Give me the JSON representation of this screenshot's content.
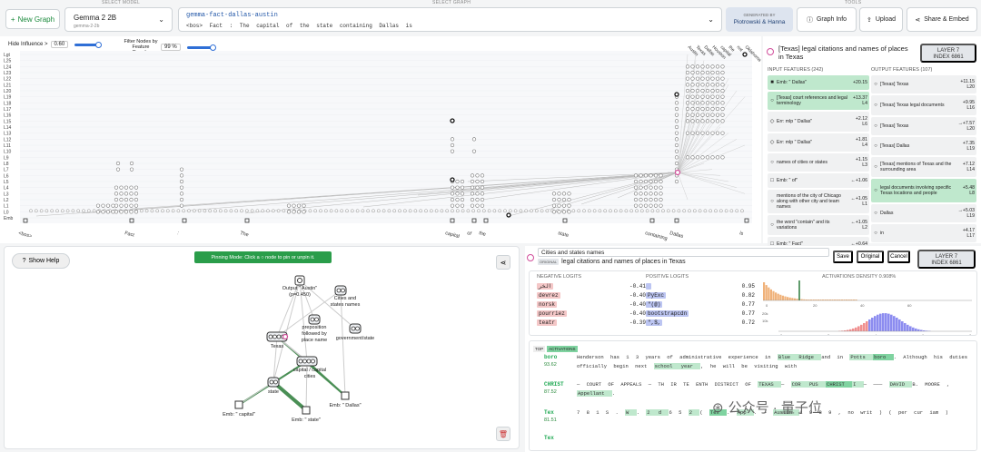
{
  "header": {
    "select_model_label": "SELECT MODEL",
    "select_graph_label": "SELECT GRAPH",
    "tools_label": "TOOLS",
    "new_graph": "New Graph",
    "model_name": "Gemma 2 2B",
    "model_id": "gemma-2-2b",
    "graph_name": "gemma-fact-dallas-austin",
    "graph_prompt": "<bos> Fact : The capital of the state containing Dallas is",
    "generated_by_label": "GENERATED BY",
    "generated_by": "Piotrowski & Hanna",
    "graph_info": "Graph Info",
    "upload": "Upload",
    "share": "Share & Embed"
  },
  "graph": {
    "hide_influence_label": "Hide Influence >",
    "hide_influence_value": "0.60",
    "filter_label": "Filter Nodes by Feature Density",
    "filter_value": "99 %",
    "layers": [
      "Lgt",
      "L25",
      "L24",
      "L23",
      "L22",
      "L21",
      "L20",
      "L19",
      "L18",
      "L17",
      "L16",
      "L15",
      "L14",
      "L13",
      "L12",
      "L11",
      "L10",
      "L9",
      "L8",
      "L7",
      "L6",
      "L5",
      "L4",
      "L3",
      "L2",
      "L1",
      "L0",
      "Emb"
    ],
    "tokens": [
      "<bos>",
      "Fact",
      ":",
      "The",
      "capital",
      "of",
      "the",
      "state",
      "containing",
      "Dallas",
      "is"
    ],
    "logit_labels": [
      "Austin",
      "Texas",
      "Dallas",
      "Houston",
      "capital",
      "the",
      "not",
      "Oklahoma"
    ]
  },
  "feature_panel": {
    "title": "[Texas] legal citations and names of places in Texas",
    "layer_line1": "LAYER 7",
    "layer_line2": "INDEX 6861",
    "input_header": "INPUT FEATURES (242)",
    "output_header": "OUTPUT FEATURES (107)",
    "inputs": [
      {
        "label": "Emb: \" Dallas\"",
        "value": "+20.15",
        "layer": "",
        "icon": "■"
      },
      {
        "label": "[Texas] court references and legal terminology",
        "value": "+13.37",
        "layer": "L4",
        "icon": "○"
      },
      {
        "label": "Err: mlp \" Dallas\"",
        "value": "+2.12",
        "layer": "L6",
        "icon": "◇"
      },
      {
        "label": "Err: mlp \" Dallas\"",
        "value": "+1.81",
        "layer": "L4",
        "icon": "◇"
      },
      {
        "label": "names of cities or states",
        "value": "+1.15",
        "layer": "L3",
        "icon": "○"
      },
      {
        "label": "Emb: \" of\"",
        "value": "←+1.06",
        "layer": "",
        "icon": "□"
      },
      {
        "label": "mentions of the city of Chicago along with other city and team names",
        "value": "←+1.05",
        "layer": "L1",
        "icon": "○"
      },
      {
        "label": "the word \"contain\" and its variations",
        "value": "←+1.05",
        "layer": "L2",
        "icon": "○"
      },
      {
        "label": "Emb: \" Fact\"",
        "value": "←+0.64",
        "layer": "",
        "icon": "□"
      }
    ],
    "outputs": [
      {
        "label": "[Texas] Texas",
        "value": "+11.15",
        "layer": "L20",
        "icon": "○"
      },
      {
        "label": "[Texas] Texas legal documents",
        "value": "+9.95",
        "layer": "L16",
        "icon": "○"
      },
      {
        "label": "[Texas] Texas",
        "value": "→+7.57",
        "layer": "L20",
        "icon": "○"
      },
      {
        "label": "[Texas] Dallas",
        "value": "+7.35",
        "layer": "L19",
        "icon": "○"
      },
      {
        "label": "[Texas] mentions of Texas and the surrounding area",
        "value": "+7.12",
        "layer": "L14",
        "icon": "○"
      },
      {
        "label": "legal documents involving specific Texas locations and people",
        "value": "+5.48",
        "layer": "L8",
        "icon": "○"
      },
      {
        "label": "Dallas",
        "value": "→+5.03",
        "layer": "L19",
        "icon": "○"
      },
      {
        "label": "in",
        "value": "+4.17",
        "layer": "L17",
        "icon": "○"
      }
    ]
  },
  "subgraph": {
    "show_help": "Show Help",
    "pin_mode": "Pinning Mode: Click a ○ node to pin or unpin it.",
    "nodes": {
      "output": "Output \" Austin\" (p=0.450)",
      "cities": "Cities and states names",
      "preposition": "preposition followed by place name",
      "government": "government/state",
      "texas": "Texas",
      "capital": "capital / capital cities",
      "state": "state",
      "emb_capital": "Emb: \" capital\"",
      "emb_state": "Emb: \" state\"",
      "emb_dallas": "Emb: \" Dallas\""
    }
  },
  "detail": {
    "name_input": "Cities and states names",
    "original_badge": "ORIGINAL",
    "original_text": "legal citations and names of places in Texas",
    "save": "Save",
    "original_btn": "Original",
    "cancel": "Cancel",
    "layer_line1": "LAYER 7",
    "layer_line2": "INDEX 6861",
    "neg_header": "NEGATIVE LOGITS",
    "pos_header": "POSITIVE LOGITS",
    "density_header": "ACTIVATIONS DENSITY 0.908%",
    "neg_logits": [
      {
        "tok": "الخر",
        "val": "-0.41"
      },
      {
        "tok": "devrez",
        "val": "-0.40"
      },
      {
        "tok": "norsk",
        "val": "-0.40"
      },
      {
        "tok": "pourriez",
        "val": "-0.40"
      },
      {
        "tok": "teatr",
        "val": "-0.39"
      }
    ],
    "pos_logits": [
      {
        "tok": "",
        "val": "0.95"
      },
      {
        "tok": "PyExc",
        "val": "0.82"
      },
      {
        "tok": "\"(@)",
        "val": "0.77"
      },
      {
        "tok": "bootstrapcdn",
        "val": "0.77"
      },
      {
        "tok": "\",$,",
        "val": "0.72"
      }
    ],
    "density_axis_top": [
      "0",
      "20",
      "40",
      "60"
    ],
    "density_axis_bottom": [
      "0",
      "2",
      "4",
      "6",
      "8"
    ],
    "density_y_labels": [
      "20k",
      "10k"
    ],
    "top_label": "TOP",
    "activations_label": "ACTIVATIONS",
    "examples": [
      {
        "word": "boro",
        "score": "93.62",
        "text": "Henderson has 1 3 years of administrative experience in Blue Ridge and in Potts boro . Although his duties officially begin next school year , he will be visiting with"
      },
      {
        "word": "CHRIST",
        "score": "87.52",
        "text": "— COURT OF APPEALS — TH IR TE ENTH DISTRICT OF TEXAS — COR PUS CHRIST I — ——— DAVID B. MOORE , Appellant ."
      },
      {
        "word": "Tex",
        "score": "81.51",
        "text": "7 8 1 S . W . 2 d 6 5 2 ( Tex . App . — Austin 1 9 8 9 , no writ ) ( per cur iam )"
      },
      {
        "word": "Tex",
        "score": "",
        "text": ""
      }
    ]
  },
  "watermark": "公众号 · 量子位"
}
